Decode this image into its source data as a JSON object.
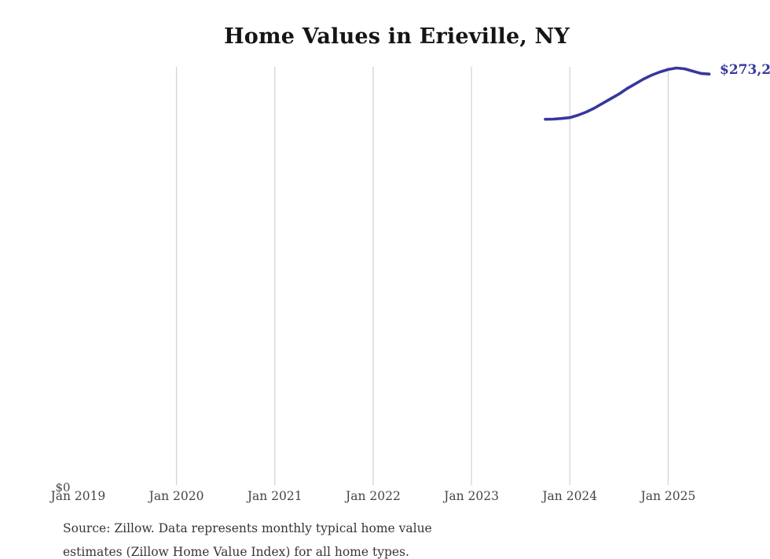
{
  "title": "Home Values in Erieville, NY",
  "end_label": "$273,2",
  "y_zero_label": "$0",
  "source": {
    "line1": "Source: Zillow. Data represents monthly typical home value",
    "line2_cropped": "estimates (Zillow Home Value Index) for all home types."
  },
  "colors": {
    "line": "#37379f",
    "end_label": "#37379f",
    "gridline": "#d4d4d4",
    "title_text": "#151515",
    "axis_text": "#454545"
  },
  "chart_data": {
    "type": "line",
    "title": "Home Values in Erieville, NY",
    "xlabel": "",
    "ylabel": "",
    "x_tick_labels": [
      "Jan 2019",
      "Jan 2020",
      "Jan 2021",
      "Jan 2022",
      "Jan 2023",
      "Jan 2024",
      "Jan 2025"
    ],
    "grid": "vertical-gridlines-only-2020-through-2025",
    "legend": "none",
    "ylim": [
      0,
      278000
    ],
    "y_axis_shown_tick": "$0",
    "end_annotation": "$273,2",
    "series": [
      {
        "name": "Monthly typical home value",
        "months": [
          "Oct 2023",
          "Nov 2023",
          "Dec 2023",
          "Jan 2024",
          "Feb 2024",
          "Mar 2024",
          "Apr 2024",
          "May 2024",
          "Jun 2024",
          "Jul 2024",
          "Aug 2024",
          "Sep 2024",
          "Oct 2024",
          "Nov 2024",
          "Dec 2024",
          "Jan 2025",
          "Feb 2025",
          "Mar 2025",
          "Apr 2025",
          "May 2025",
          "Jun 2025"
        ],
        "values": [
          243100,
          243200,
          243600,
          244200,
          245800,
          247900,
          250500,
          253700,
          256800,
          259900,
          263600,
          266700,
          269900,
          272500,
          274600,
          276200,
          277200,
          276700,
          275100,
          273600,
          273200
        ]
      }
    ]
  }
}
